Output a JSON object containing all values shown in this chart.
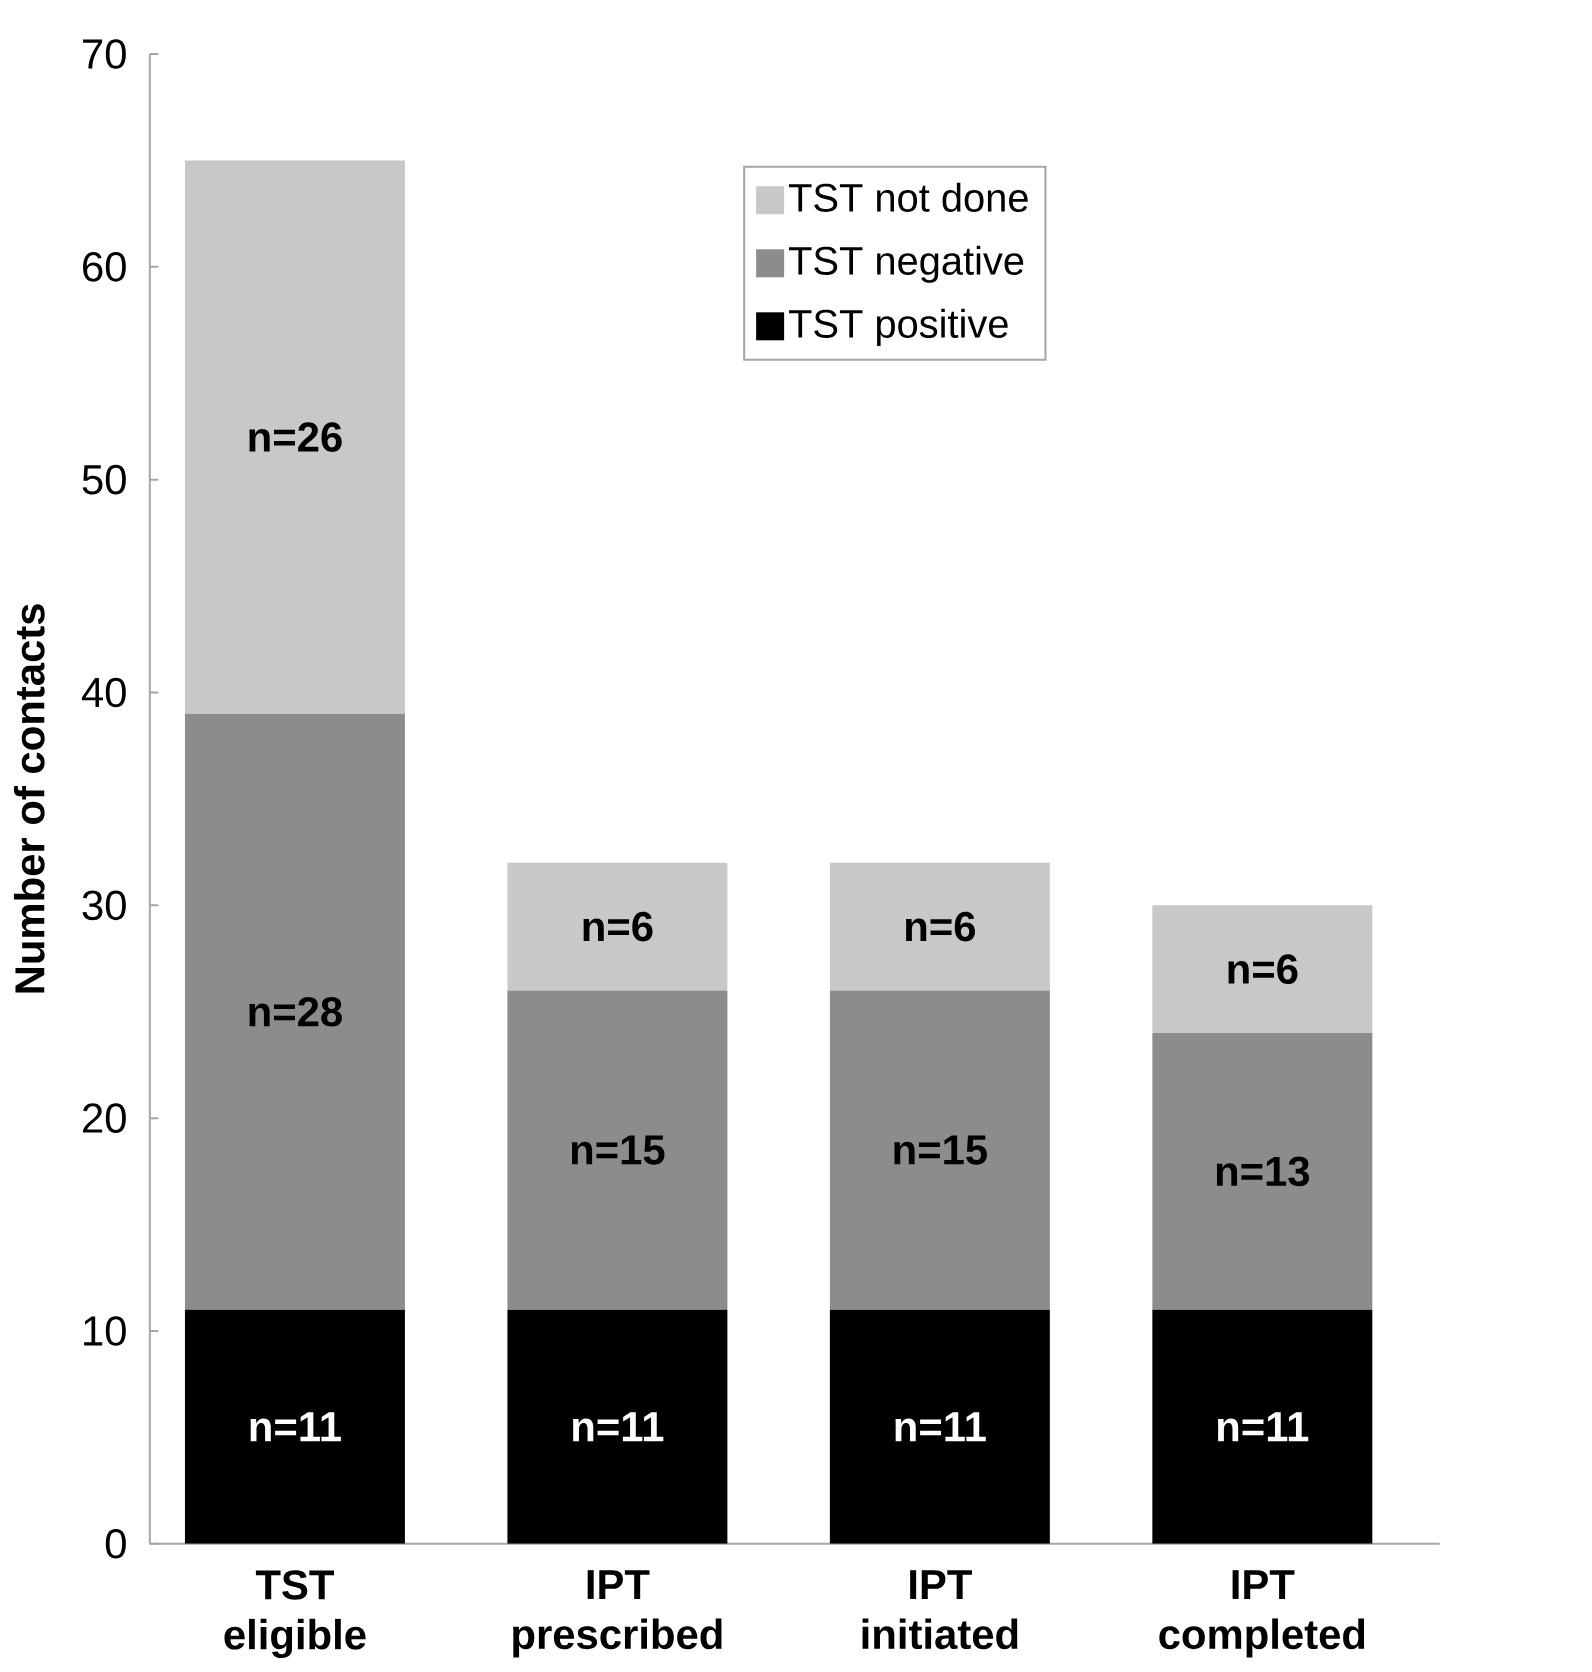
{
  "chart_data": {
    "type": "bar",
    "stacked": true,
    "ylabel": "Number of contacts",
    "categories": [
      "TST eligible",
      "IPT prescribed",
      "IPT initiated",
      "IPT completed"
    ],
    "series": [
      {
        "name": "TST positive",
        "color": "#000000",
        "values": [
          11,
          11,
          11,
          11
        ],
        "value_labels": [
          "n=11",
          "n=11",
          "n=11",
          "n=11"
        ]
      },
      {
        "name": "TST negative",
        "color": "#8c8c8c",
        "values": [
          28,
          15,
          15,
          13
        ],
        "value_labels": [
          "n=28",
          "n=15",
          "n=15",
          "n=13"
        ]
      },
      {
        "name": "TST not done",
        "color": "#c8c8c8",
        "values": [
          26,
          6,
          6,
          6
        ],
        "value_labels": [
          "n=26",
          "n=6",
          "n=6",
          "n=6"
        ]
      }
    ],
    "ylim": [
      0,
      70
    ],
    "yticks": [
      0,
      10,
      20,
      30,
      40,
      50,
      60,
      70
    ],
    "grid": false,
    "legend": "top right"
  }
}
